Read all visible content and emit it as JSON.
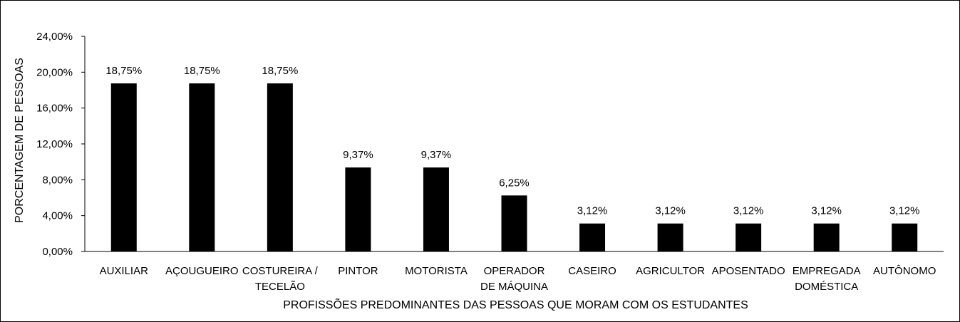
{
  "chart_data": {
    "type": "bar",
    "title": "",
    "xlabel": "PROFISSÕES PREDOMINANTES DAS PESSOAS QUE MORAM COM OS ESTUDANTES",
    "ylabel": "PORCENTAGEM DE PESSOAS",
    "ylim": [
      0,
      24
    ],
    "yticks": [
      0,
      4,
      8,
      12,
      16,
      20,
      24
    ],
    "ytick_labels": [
      "0,00%",
      "4,00%",
      "8,00%",
      "12,00%",
      "16,00%",
      "20,00%",
      "24,00%"
    ],
    "categories": [
      [
        "AUXILIAR"
      ],
      [
        "AÇOUGUEIRO"
      ],
      [
        "COSTUREIRA /",
        "TECELÃO"
      ],
      [
        "PINTOR"
      ],
      [
        "MOTORISTA"
      ],
      [
        "OPERADOR",
        "DE MÁQUINA"
      ],
      [
        "CASEIRO"
      ],
      [
        "AGRICULTOR"
      ],
      [
        "APOSENTADO"
      ],
      [
        "EMPREGADA",
        "DOMÉSTICA"
      ],
      [
        "AUTÔNOMO"
      ]
    ],
    "values": [
      18.75,
      18.75,
      18.75,
      9.37,
      9.37,
      6.25,
      3.12,
      3.12,
      3.12,
      3.12,
      3.12
    ],
    "data_labels": [
      "18,75%",
      "18,75%",
      "18,75%",
      "9,37%",
      "9,37%",
      "6,25%",
      "3,12%",
      "3,12%",
      "3,12%",
      "3,12%",
      "3,12%"
    ],
    "bar_color": "#000000",
    "grid": false,
    "legend": "none"
  }
}
